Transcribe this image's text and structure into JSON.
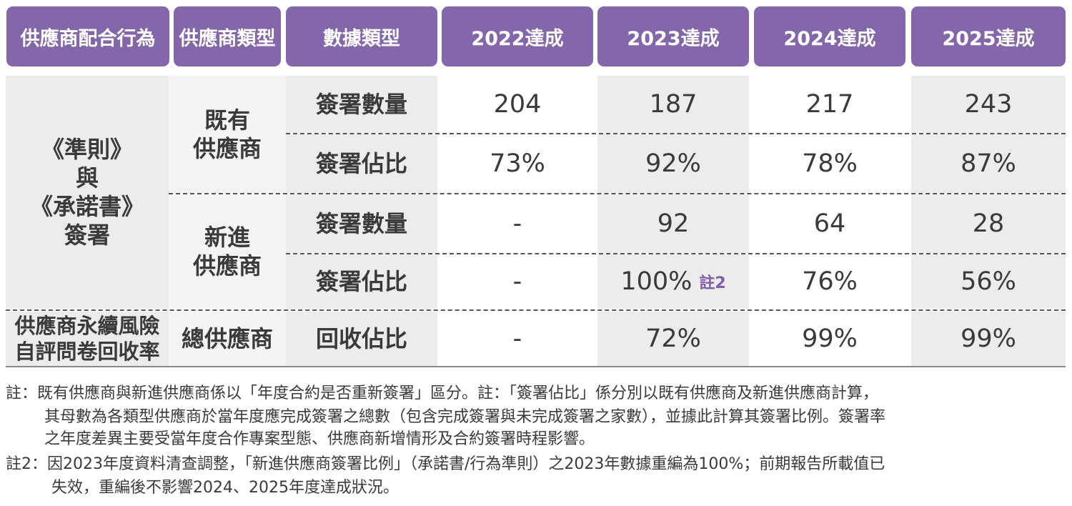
{
  "headers": [
    "供應商配合行為",
    "供應商類型",
    "數據類型",
    "2022達成",
    "2023達成",
    "2024達成",
    "2025達成"
  ],
  "behavior": {
    "signing": [
      "《準則》",
      "與",
      "《承諾書》",
      "簽署"
    ],
    "survey": [
      "供應商永續風險",
      "自評問卷回收率"
    ]
  },
  "supplier_types": {
    "existing": [
      "既有",
      "供應商"
    ],
    "new": [
      "新進",
      "供應商"
    ],
    "total": "總供應商"
  },
  "rows": [
    {
      "data_type": "簽署數量",
      "values": [
        "204",
        "187",
        "217",
        "243"
      ]
    },
    {
      "data_type": "簽署佔比",
      "values": [
        "73%",
        "92%",
        "78%",
        "87%"
      ]
    },
    {
      "data_type": "簽署數量",
      "values": [
        "-",
        "92",
        "64",
        "28"
      ]
    },
    {
      "data_type": "簽署佔比",
      "values": [
        "-",
        "100%",
        "76%",
        "56%"
      ],
      "note": "註2"
    },
    {
      "data_type": "回收佔比",
      "values": [
        "-",
        "72%",
        "99%",
        "99%"
      ]
    }
  ],
  "footnotes": {
    "note1": [
      "註：既有供應商與新進供應商係以「年度合約是否重新簽署」區分。註：「簽署佔比」係分別以既有供應商及新進供應商計算，",
      "其母數為各類型供應商於當年度應完成簽署之總數（包含完成簽署與未完成簽署之家數），並據此計算其簽署比例。簽署率",
      "之年度差異主要受當年度合作專案型態、供應商新增情形及合約簽署時程影響。"
    ],
    "note2": [
      "註2：因2023年度資料清查調整，「新進供應商簽署比例」（承諾書/行為準則）之2023年數據重編為100%；前期報告所載值已",
      "失效，重編後不影響2024、2025年度達成狀況。"
    ]
  },
  "colors": {
    "header_bg": "#8466aa",
    "note_color": "#7e5fa8"
  }
}
